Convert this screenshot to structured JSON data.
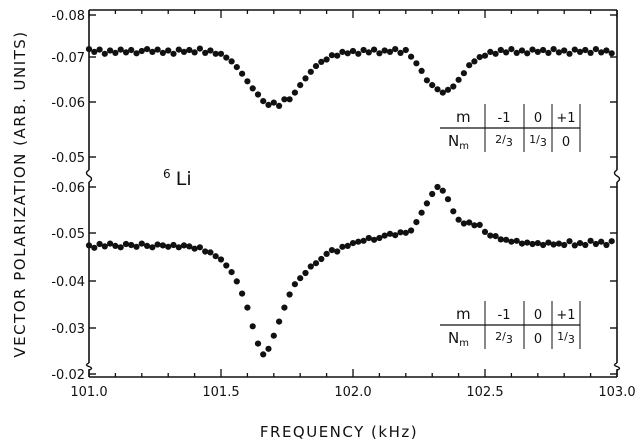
{
  "chart_data": [
    {
      "type": "scatter",
      "panel": "upper",
      "xlabel": "FREQUENCY (kHz)",
      "ylabel": "VECTOR POLARIZATION (ARB. UNITS)",
      "x_ticks": [
        "101.0",
        "101.5",
        "102.0",
        "102.5",
        "103.0"
      ],
      "xlim": [
        101.0,
        103.0
      ],
      "ylim": [
        -0.047,
        -0.08
      ],
      "y_ticks": [
        "-0.08",
        "-0.07",
        "-0.06",
        "-0.05"
      ],
      "annotation": "⁶Li",
      "series": [
        {
          "x": [
            101.0,
            101.02,
            101.04,
            101.06,
            101.08,
            101.1,
            101.12,
            101.14,
            101.16,
            101.18,
            101.2,
            101.22,
            101.24,
            101.26,
            101.28,
            101.3,
            101.32,
            101.34,
            101.36,
            101.38,
            101.4,
            101.42,
            101.44,
            101.46,
            101.48,
            101.5,
            101.52,
            101.54,
            101.56,
            101.58,
            101.6,
            101.62,
            101.64,
            101.66,
            101.68,
            101.7,
            101.72,
            101.74,
            101.76,
            101.78,
            101.8,
            101.82,
            101.84,
            101.86,
            101.88,
            101.9,
            101.92,
            101.94,
            101.96,
            101.98,
            102.0,
            102.02,
            102.04,
            102.06,
            102.08,
            102.1,
            102.12,
            102.14,
            102.16,
            102.18,
            102.2,
            102.22,
            102.24,
            102.26,
            102.28,
            102.3,
            102.32,
            102.34,
            102.36,
            102.38,
            102.4,
            102.42,
            102.44,
            102.46,
            102.48,
            102.5,
            102.52,
            102.54,
            102.56,
            102.58,
            102.6,
            102.62,
            102.64,
            102.66,
            102.68,
            102.7,
            102.72,
            102.74,
            102.76,
            102.78,
            102.8,
            102.82,
            102.84,
            102.86,
            102.88,
            102.9,
            102.92,
            102.94,
            102.96,
            102.98
          ],
          "y": [
            -0.0728,
            -0.0722,
            -0.0727,
            -0.0718,
            -0.0725,
            -0.072,
            -0.0727,
            -0.0721,
            -0.0726,
            -0.0719,
            -0.0724,
            -0.0728,
            -0.0722,
            -0.0727,
            -0.072,
            -0.0725,
            -0.0718,
            -0.0727,
            -0.0722,
            -0.0726,
            -0.0721,
            -0.0729,
            -0.072,
            -0.0725,
            -0.0718,
            -0.0718,
            -0.071,
            -0.0702,
            -0.069,
            -0.0676,
            -0.066,
            -0.0645,
            -0.0632,
            -0.0618,
            -0.061,
            -0.0615,
            -0.0608,
            -0.0622,
            -0.0622,
            -0.0636,
            -0.0652,
            -0.0666,
            -0.068,
            -0.0692,
            -0.0701,
            -0.0706,
            -0.0715,
            -0.0714,
            -0.0722,
            -0.0719,
            -0.0724,
            -0.0718,
            -0.0726,
            -0.0721,
            -0.0727,
            -0.0719,
            -0.0725,
            -0.0722,
            -0.0728,
            -0.072,
            -0.0726,
            -0.0712,
            -0.0698,
            -0.0682,
            -0.0662,
            -0.0652,
            -0.0643,
            -0.0636,
            -0.0642,
            -0.0649,
            -0.0663,
            -0.0677,
            -0.0694,
            -0.0702,
            -0.0711,
            -0.0714,
            -0.0722,
            -0.0718,
            -0.0726,
            -0.0721,
            -0.0728,
            -0.072,
            -0.0725,
            -0.0719,
            -0.0727,
            -0.0722,
            -0.0726,
            -0.072,
            -0.0728,
            -0.0721,
            -0.0725,
            -0.0718,
            -0.0727,
            -0.0722,
            -0.0726,
            -0.072,
            -0.0728,
            -0.0721,
            -0.0725,
            -0.0719
          ]
        }
      ]
    },
    {
      "type": "scatter",
      "panel": "lower",
      "xlim": [
        101.0,
        103.0
      ],
      "ylim": [
        -0.018,
        -0.066
      ],
      "y_ticks": [
        "-0.06",
        "-0.05",
        "-0.04",
        "-0.03",
        "-0.02"
      ],
      "series": [
        {
          "x": [
            101.0,
            101.02,
            101.04,
            101.06,
            101.08,
            101.1,
            101.12,
            101.14,
            101.16,
            101.18,
            101.2,
            101.22,
            101.24,
            101.26,
            101.28,
            101.3,
            101.32,
            101.34,
            101.36,
            101.38,
            101.4,
            101.42,
            101.44,
            101.46,
            101.48,
            101.5,
            101.52,
            101.54,
            101.56,
            101.58,
            101.6,
            101.62,
            101.64,
            101.66,
            101.68,
            101.7,
            101.72,
            101.74,
            101.76,
            101.78,
            101.8,
            101.82,
            101.84,
            101.86,
            101.88,
            101.9,
            101.92,
            101.94,
            101.96,
            101.98,
            102.0,
            102.02,
            102.04,
            102.06,
            102.08,
            102.1,
            102.12,
            102.14,
            102.16,
            102.18,
            102.2,
            102.22,
            102.24,
            102.26,
            102.28,
            102.3,
            102.32,
            102.34,
            102.36,
            102.38,
            102.4,
            102.42,
            102.44,
            102.46,
            102.48,
            102.5,
            102.52,
            102.54,
            102.56,
            102.58,
            102.6,
            102.62,
            102.64,
            102.66,
            102.68,
            102.7,
            102.72,
            102.74,
            102.76,
            102.78,
            102.8,
            102.82,
            102.84,
            102.86,
            102.88,
            102.9,
            102.92,
            102.94,
            102.96,
            102.98
          ],
          "y": [
            -0.0475,
            -0.047,
            -0.0478,
            -0.0473,
            -0.0479,
            -0.0474,
            -0.0471,
            -0.0478,
            -0.0476,
            -0.0472,
            -0.0479,
            -0.0474,
            -0.0471,
            -0.0477,
            -0.0475,
            -0.0472,
            -0.0476,
            -0.0471,
            -0.0475,
            -0.0473,
            -0.0468,
            -0.0471,
            -0.0462,
            -0.046,
            -0.0452,
            -0.0445,
            -0.0432,
            -0.0418,
            -0.0398,
            -0.0372,
            -0.0342,
            -0.0302,
            -0.0265,
            -0.0242,
            -0.0254,
            -0.0282,
            -0.0312,
            -0.0342,
            -0.037,
            -0.0392,
            -0.0405,
            -0.0416,
            -0.043,
            -0.0437,
            -0.0446,
            -0.0457,
            -0.0465,
            -0.0462,
            -0.0472,
            -0.0474,
            -0.048,
            -0.0483,
            -0.0485,
            -0.0491,
            -0.0487,
            -0.0491,
            -0.0496,
            -0.05,
            -0.0497,
            -0.0503,
            -0.0502,
            -0.0507,
            -0.0525,
            -0.0545,
            -0.0565,
            -0.0585,
            -0.06,
            -0.0592,
            -0.0574,
            -0.0548,
            -0.053,
            -0.0522,
            -0.0524,
            -0.0518,
            -0.0519,
            -0.0504,
            -0.0496,
            -0.0495,
            -0.0488,
            -0.0487,
            -0.0483,
            -0.0485,
            -0.0479,
            -0.0481,
            -0.0478,
            -0.048,
            -0.0476,
            -0.0481,
            -0.0477,
            -0.0479,
            -0.0476,
            -0.0484,
            -0.0475,
            -0.048,
            -0.0476,
            -0.0485,
            -0.0478,
            -0.0483,
            -0.0476,
            -0.0484
          ]
        }
      ]
    }
  ],
  "tables": [
    {
      "row1_label": "m",
      "row2_label": "N",
      "row2_sub": "m",
      "headers": [
        "-1",
        "0",
        "+1"
      ],
      "values": [
        {
          "num": "2",
          "den": "3"
        },
        {
          "num": "1",
          "den": "3"
        },
        {
          "plain": "0"
        }
      ]
    },
    {
      "row1_label": "m",
      "row2_label": "N",
      "row2_sub": "m",
      "headers": [
        "-1",
        "0",
        "+1"
      ],
      "values": [
        {
          "num": "2",
          "den": "3"
        },
        {
          "plain": "0"
        },
        {
          "num": "1",
          "den": "3"
        }
      ]
    }
  ],
  "labels": {
    "isotope_mass": "6",
    "isotope_symbol": "Li"
  },
  "colors": {
    "ink": "#111111",
    "background": "#ffffff"
  }
}
